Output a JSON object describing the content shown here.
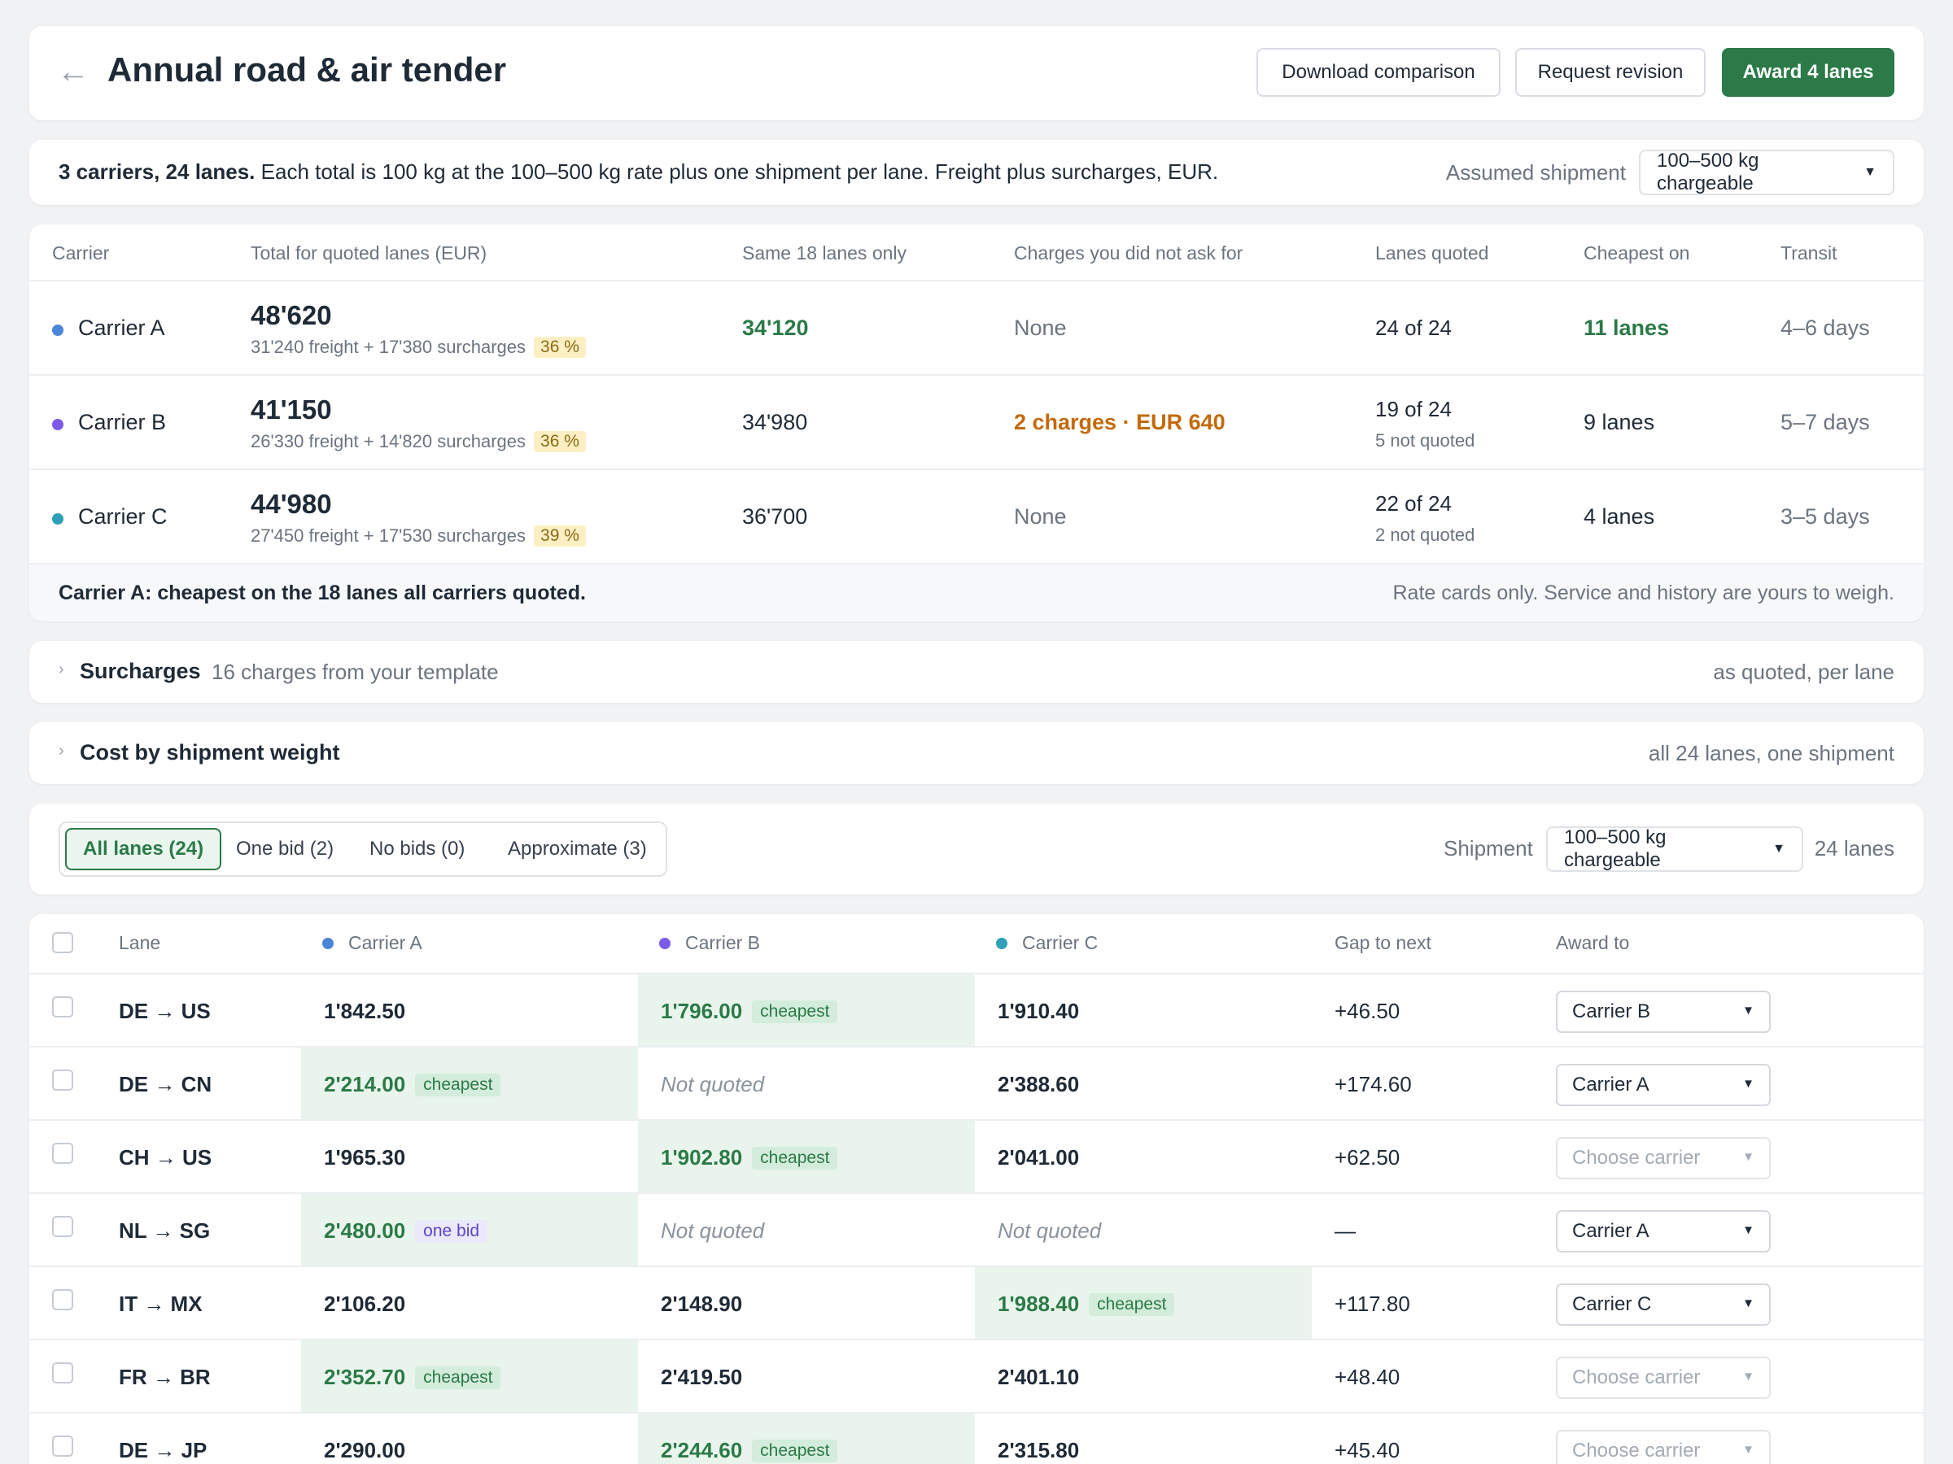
{
  "header": {
    "title": "Annual road & air tender",
    "buttons": {
      "download": "Download comparison",
      "revision": "Request revision",
      "award": "Award 4 lanes"
    }
  },
  "summary": {
    "bold": "3 carriers, 24 lanes.",
    "text": "Each total is 100 kg at the 100–500 kg rate plus one shipment per lane. Freight plus surcharges, EUR.",
    "assumed_label": "Assumed shipment",
    "assumed_value": "100–500 kg chargeable"
  },
  "comparison": {
    "columns": [
      "Carrier",
      "Total for quoted lanes (EUR)",
      "Same 18 lanes only",
      "Charges you did not ask for",
      "Lanes quoted",
      "Cheapest on",
      "Transit"
    ],
    "rows": [
      {
        "name": "Carrier A",
        "color": "#4a86d8",
        "total": "48'620",
        "freight": "31'240 freight + 17'380 surcharges",
        "pct": "36 %",
        "same18": "34'120",
        "charges": "None",
        "lanes": "24 of 24",
        "not_quoted": "",
        "cheapest": "11 lanes",
        "transit": "4–6 days"
      },
      {
        "name": "Carrier B",
        "color": "#7c5ce6",
        "total": "41'150",
        "freight": "26'330 freight + 14'820 surcharges",
        "pct": "36 %",
        "same18": "34'980",
        "charges": "2 charges · EUR 640",
        "lanes": "19 of 24",
        "not_quoted": "5 not quoted",
        "cheapest": "9 lanes",
        "transit": "5–7 days"
      },
      {
        "name": "Carrier C",
        "color": "#2ea0b8",
        "total": "44'980",
        "freight": "27'450 freight + 17'530 surcharges",
        "pct": "39 %",
        "same18": "36'700",
        "charges": "None",
        "lanes": "22 of 24",
        "not_quoted": "2 not quoted",
        "cheapest": "4 lanes",
        "transit": "3–5 days"
      }
    ],
    "footer_left": "Carrier A: cheapest on the 18 lanes all carriers quoted.",
    "footer_right": "Rate cards only. Service and history are yours to weigh."
  },
  "surcharges": {
    "title": "Surcharges",
    "sub": "16 charges from your template",
    "right": "as quoted, per lane"
  },
  "weight": {
    "title": "Cost by shipment weight",
    "right": "all 24 lanes, one shipment"
  },
  "filters": {
    "tabs": [
      "All lanes (24)",
      "One bid (2)",
      "No bids (0)",
      "Approximate (3)"
    ],
    "shipment_label": "Shipment",
    "shipment_value": "100–500 kg chargeable",
    "lanes_count": "24 lanes"
  },
  "lanes": {
    "columns": {
      "lane": "Lane",
      "a": "Carrier A",
      "b": "Carrier B",
      "c": "Carrier C",
      "gap": "Gap to next",
      "award": "Award to"
    },
    "rows": [
      {
        "lane": "DE → US",
        "a": "1'842.50",
        "b": "1'796.00",
        "c": "1'910.40",
        "gap": "+46.50",
        "award": "Carrier B",
        "tag_b": "cheapest"
      },
      {
        "lane": "DE → CN",
        "a": "2'214.00",
        "b": "Not quoted",
        "c": "2'388.60",
        "gap": "+174.60",
        "award": "Carrier A",
        "tag_a": "cheapest"
      },
      {
        "lane": "CH → US",
        "a": "1'965.30",
        "b": "1'902.80",
        "c": "2'041.00",
        "gap": "+62.50",
        "award": "Choose carrier",
        "tag_b": "cheapest"
      },
      {
        "lane": "NL → SG",
        "a": "2'480.00",
        "b": "Not quoted",
        "c": "Not quoted",
        "gap": "—",
        "award": "Carrier A",
        "tag_a": "one bid"
      },
      {
        "lane": "IT → MX",
        "a": "2'106.20",
        "b": "2'148.90",
        "c": "1'988.40",
        "gap": "+117.80",
        "award": "Carrier C",
        "tag_c": "cheapest"
      },
      {
        "lane": "FR → BR",
        "a": "2'352.70",
        "b": "2'419.50",
        "c": "2'401.10",
        "gap": "+48.40",
        "award": "Choose carrier",
        "tag_a": "cheapest"
      },
      {
        "lane": "DE → JP",
        "a": "2'290.00",
        "b": "2'244.60",
        "c": "2'315.80",
        "gap": "+45.40",
        "award": "Choose carrier",
        "tag_b": "cheapest"
      }
    ]
  },
  "colors": {
    "accent": "#2b7a47",
    "carrier_a": "#4a86d8",
    "carrier_b": "#7c5ce6",
    "carrier_c": "#2ea0b8",
    "warning": "#c46a0c"
  },
  "icons": {
    "back": "arrow-left-icon",
    "caret": "caret-down-icon",
    "chevron": "chevron-right-icon"
  }
}
